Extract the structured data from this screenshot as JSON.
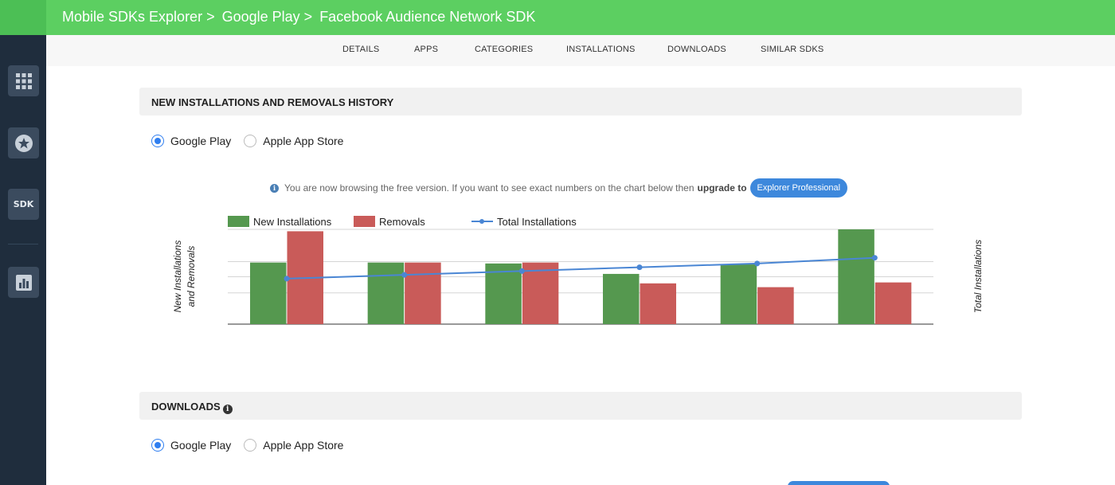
{
  "breadcrumb": {
    "root": "Mobile SDKs Explorer >",
    "store": "Google Play >",
    "sdk": "Facebook Audience Network SDK"
  },
  "sidebar": {
    "items": [
      {
        "icon": "apps-grid-icon"
      },
      {
        "icon": "star-icon"
      },
      {
        "icon": "sdk-icon",
        "label": "SDK"
      },
      {
        "icon": "bar-chart-icon"
      }
    ]
  },
  "nav": {
    "tabs": [
      "DETAILS",
      "APPS",
      "CATEGORIES",
      "INSTALLATIONS",
      "DOWNLOADS",
      "SIMILAR SDKS"
    ]
  },
  "installations_panel": {
    "title": "NEW INSTALLATIONS AND REMOVALS HISTORY",
    "store_options": [
      "Google Play",
      "Apple App Store"
    ],
    "selected_store": "Google Play",
    "notice_text": "You are now browsing the free version. If you want to see exact numbers on the chart below then",
    "notice_bold": "upgrade to",
    "upgrade_button": "Explorer Professional"
  },
  "chart_data": {
    "type": "bar",
    "categories": [
      "",
      "",
      "",
      "",
      "",
      ""
    ],
    "series": [
      {
        "name": "New Installations",
        "color": "#55984f",
        "values": [
          0.65,
          0.65,
          0.64,
          0.53,
          0.63,
          1.0
        ]
      },
      {
        "name": "Removals",
        "color": "#c95b59",
        "values": [
          0.98,
          0.65,
          0.65,
          0.43,
          0.39,
          0.44
        ]
      },
      {
        "name": "Total Installations",
        "type": "line",
        "color": "#4a86d4",
        "values": [
          0.48,
          0.52,
          0.56,
          0.6,
          0.64,
          0.7
        ]
      }
    ],
    "ylabel": "New Installations and Removals",
    "y2label": "Total Installations",
    "ylim": [
      0,
      1
    ],
    "grid": true,
    "legend": "top-left"
  },
  "downloads_panel": {
    "title": "DOWNLOADS",
    "store_options": [
      "Google Play",
      "Apple App Store"
    ],
    "selected_store": "Google Play"
  }
}
